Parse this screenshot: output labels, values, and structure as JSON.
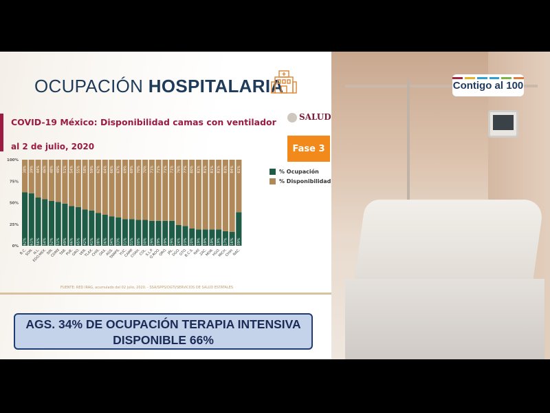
{
  "header": {
    "title_light": "OCUPACIÓN",
    "title_bold": "HOSPITALARIA"
  },
  "slide": {
    "subtitle": "COVID-19 México: Disponibilidad camas con ventilador",
    "date": "al 2 de julio, 2020",
    "agency": "SALUD",
    "phase_badge": "Fase 3",
    "source": "FUENTE: RED IRAG, acumulado del 02 julio, 2020. - SSA/SPPS/DGTI/SERVICIOS DE SALUD ESTATALES"
  },
  "logo": {
    "text": "Contigo al 100",
    "stripe_colors": [
      "#a3243b",
      "#e6b325",
      "#2f9fd0",
      "#2f9fd0",
      "#7cb342",
      "#e07b39"
    ]
  },
  "banner": {
    "line1": "AGS. 34% DE OCUPACIÓN TERAPIA INTENSIVA",
    "line2": "DISPONIBLE 66%"
  },
  "chart_data": {
    "type": "bar",
    "stacked": true,
    "title": "COVID-19 México: Disponibilidad camas con ventilador",
    "categories": [
      "B.C.",
      "SON.",
      "N.L.",
      "EDO.MEX.",
      "SIN.",
      "CDMX",
      "TAB.",
      "PUE.",
      "GRO.",
      "VER.",
      "TLAX.",
      "CHIS.",
      "OAX.",
      "AGS.",
      "TAMPS.",
      "YUC.",
      "CAMP.",
      "COAH.",
      "COL.",
      "S.L.P.",
      "Q.ROO.",
      "QRO.",
      "JAL.",
      "DGO.",
      "GTO.",
      "B.C.S.",
      "NAY.",
      "ZAC.",
      "MOR.",
      "HGO.",
      "MICH.",
      "CHIH.",
      "NAC."
    ],
    "series": [
      {
        "name": "% Ocupación",
        "color": "#1e5c47",
        "values": [
          62,
          61,
          56,
          54,
          52,
          51,
          49,
          46,
          45,
          42,
          41,
          38,
          36,
          34,
          33,
          31,
          31,
          30,
          30,
          29,
          29,
          29,
          29,
          24,
          23,
          20,
          19,
          19,
          19,
          19,
          17,
          16,
          39
        ]
      },
      {
        "name": "% Disponibilidad",
        "color": "#b0895a",
        "values": [
          38,
          39,
          44,
          46,
          48,
          49,
          51,
          54,
          55,
          58,
          59,
          62,
          64,
          66,
          67,
          69,
          69,
          70,
          70,
          71,
          71,
          71,
          71,
          76,
          77,
          80,
          81,
          81,
          81,
          81,
          83,
          84,
          61
        ]
      }
    ],
    "yticks": [
      "0%",
      "25%",
      "50%",
      "75%",
      "100%"
    ],
    "ylim": [
      0,
      100
    ],
    "grid": false,
    "legend": "right"
  }
}
